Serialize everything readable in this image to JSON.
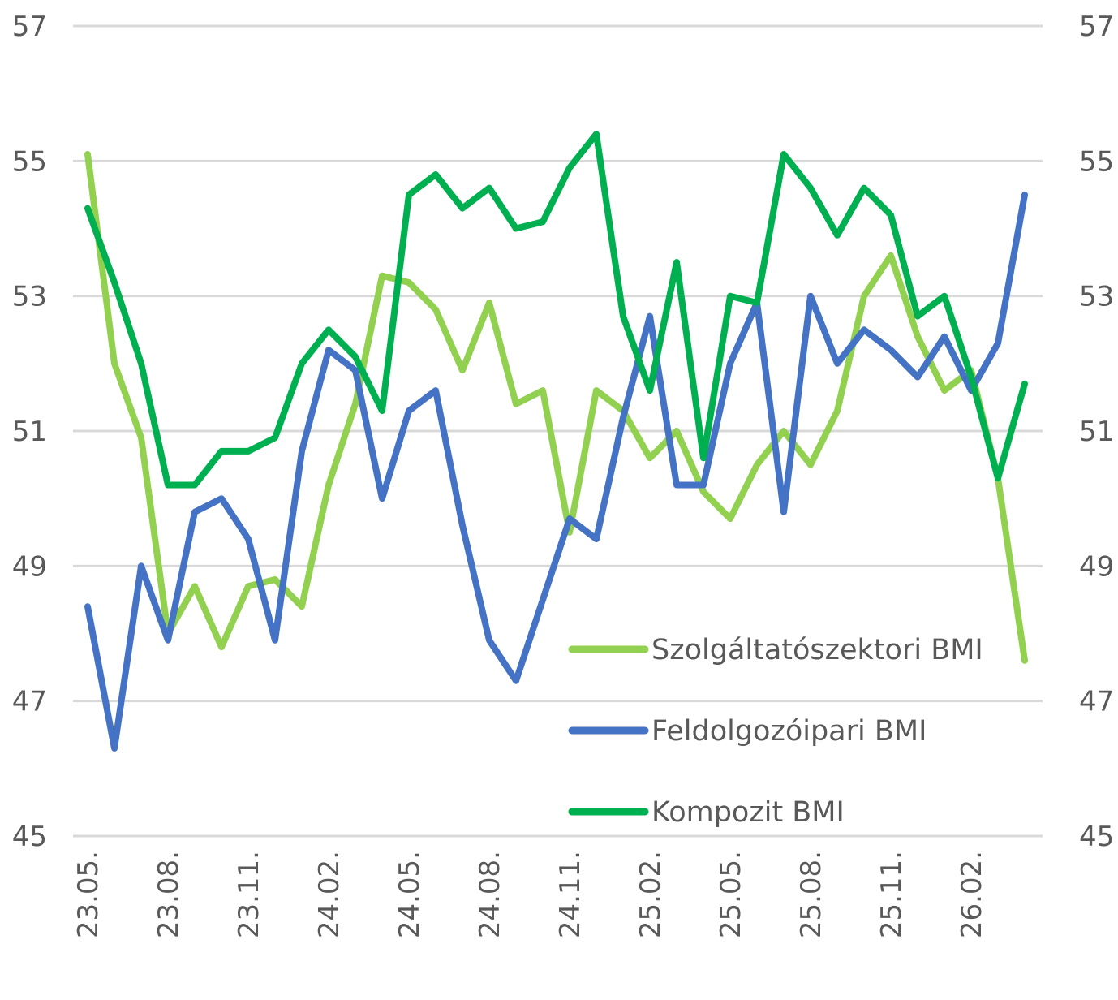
{
  "chart_data": {
    "type": "line",
    "title": "",
    "xlabel": "",
    "ylabel": "",
    "ylim": [
      45,
      57
    ],
    "yticks": [
      45,
      47,
      49,
      51,
      53,
      55,
      57
    ],
    "ytick_labels": [
      "45",
      "47",
      "49",
      "51",
      "53",
      "55",
      "57"
    ],
    "secondary_ytick_labels": [
      "45",
      "47",
      "49",
      "51",
      "53",
      "55",
      "57"
    ],
    "grid": true,
    "legend_position": "bottom-right",
    "x_tick_labels": [
      {
        "index": 0,
        "label": "23.05."
      },
      {
        "index": 3,
        "label": "23.08."
      },
      {
        "index": 6,
        "label": "23.11."
      },
      {
        "index": 9,
        "label": "24.02."
      },
      {
        "index": 12,
        "label": "24.05."
      },
      {
        "index": 15,
        "label": "24.08."
      },
      {
        "index": 18,
        "label": "24.11."
      },
      {
        "index": 21,
        "label": "25.02."
      },
      {
        "index": 24,
        "label": "25.05."
      },
      {
        "index": 27,
        "label": "25.08."
      },
      {
        "index": 30,
        "label": "25.11."
      },
      {
        "index": 33,
        "label": "26.02."
      }
    ],
    "x": [
      "23.05.",
      "23.06.",
      "23.07.",
      "23.08.",
      "23.09.",
      "23.10.",
      "23.11.",
      "23.12.",
      "24.01.",
      "24.02.",
      "24.03.",
      "24.04.",
      "24.05.",
      "24.06.",
      "24.07.",
      "24.08.",
      "24.09.",
      "24.10.",
      "24.11.",
      "24.12.",
      "25.01.",
      "25.02.",
      "25.03.",
      "25.04.",
      "25.05.",
      "25.06.",
      "25.07.",
      "25.08.",
      "25.09.",
      "25.10.",
      "25.11.",
      "25.12.",
      "26.01.",
      "26.02.",
      "26.03.",
      "26.04."
    ],
    "series": [
      {
        "name": "Szolgáltatószektori BMI",
        "color": "#92d050",
        "values": [
          55.1,
          52.0,
          50.9,
          48.0,
          48.7,
          47.8,
          48.7,
          48.8,
          48.4,
          50.2,
          51.4,
          53.3,
          53.2,
          52.8,
          51.9,
          52.9,
          51.4,
          51.6,
          49.5,
          51.6,
          51.3,
          50.6,
          51.0,
          50.1,
          49.7,
          50.5,
          51.0,
          50.5,
          51.3,
          53.0,
          53.6,
          52.4,
          51.6,
          51.9,
          50.3,
          47.6
        ]
      },
      {
        "name": "Feldolgozóipari BMI",
        "color": "#4472c4",
        "values": [
          48.4,
          46.3,
          49.0,
          47.9,
          49.8,
          50.0,
          49.4,
          47.9,
          50.7,
          52.2,
          51.9,
          50.0,
          51.3,
          51.6,
          49.6,
          47.9,
          47.3,
          48.5,
          49.7,
          49.4,
          51.2,
          52.7,
          50.2,
          50.2,
          52.0,
          52.9,
          49.8,
          53.0,
          52.0,
          52.5,
          52.2,
          51.8,
          52.4,
          51.6,
          52.3,
          54.5
        ]
      },
      {
        "name": "Kompozit BMI",
        "color": "#00b050",
        "values": [
          54.3,
          53.2,
          52.0,
          50.2,
          50.2,
          50.7,
          50.7,
          50.9,
          52.0,
          52.5,
          52.1,
          51.3,
          54.5,
          54.8,
          54.3,
          54.6,
          54.0,
          54.1,
          54.9,
          55.4,
          52.7,
          51.6,
          53.5,
          50.6,
          53.0,
          52.9,
          55.1,
          54.6,
          53.9,
          54.6,
          54.2,
          52.7,
          53.0,
          51.8,
          50.3,
          51.7
        ]
      }
    ]
  }
}
